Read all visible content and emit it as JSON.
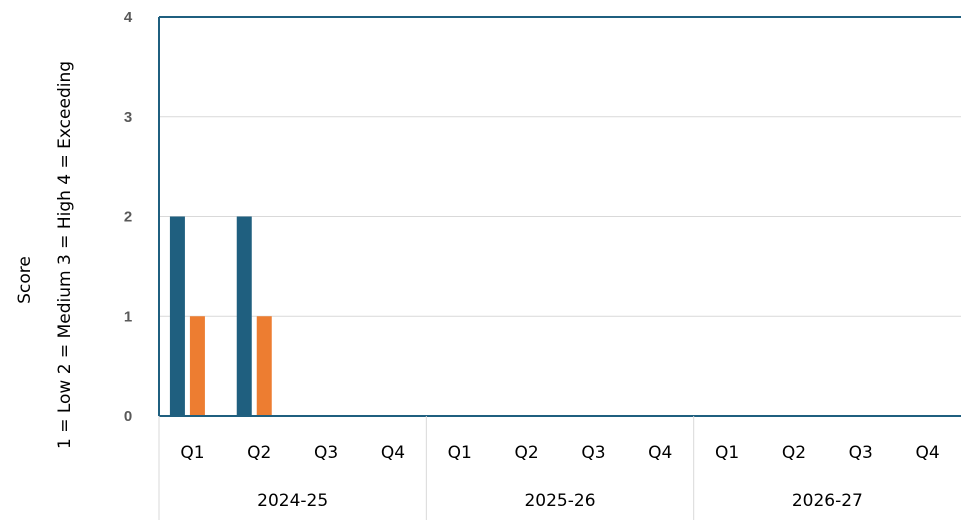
{
  "chart_data": {
    "type": "bar",
    "categories": [
      "Q1",
      "Q2",
      "Q3",
      "Q4",
      "Q1",
      "Q2",
      "Q3",
      "Q4",
      "Q1",
      "Q2",
      "Q3",
      "Q4"
    ],
    "groups": [
      {
        "label": "2024-25",
        "span": 4
      },
      {
        "label": "2025-26",
        "span": 4
      },
      {
        "label": "2026-27",
        "span": 4
      }
    ],
    "series": [
      {
        "color": "#1f5f7f",
        "values": [
          2,
          2,
          0,
          0,
          0,
          0,
          0,
          0,
          0,
          0,
          0,
          0
        ]
      },
      {
        "color": "#ed7d31",
        "values": [
          1,
          1,
          0,
          0,
          0,
          0,
          0,
          0,
          0,
          0,
          0,
          0
        ]
      }
    ],
    "ylim": [
      0,
      4
    ],
    "yticks": [
      "0",
      "1",
      "2",
      "3",
      "4"
    ],
    "ylabel_line1": "Score",
    "ylabel_line2": "1 = Low   2 = Medium   3 = High 4 = Exceeding",
    "grid": true,
    "colors": {
      "gridline": "#d9d9d9",
      "frame": "#1f5f7f",
      "divider": "#d9d9d9"
    }
  }
}
